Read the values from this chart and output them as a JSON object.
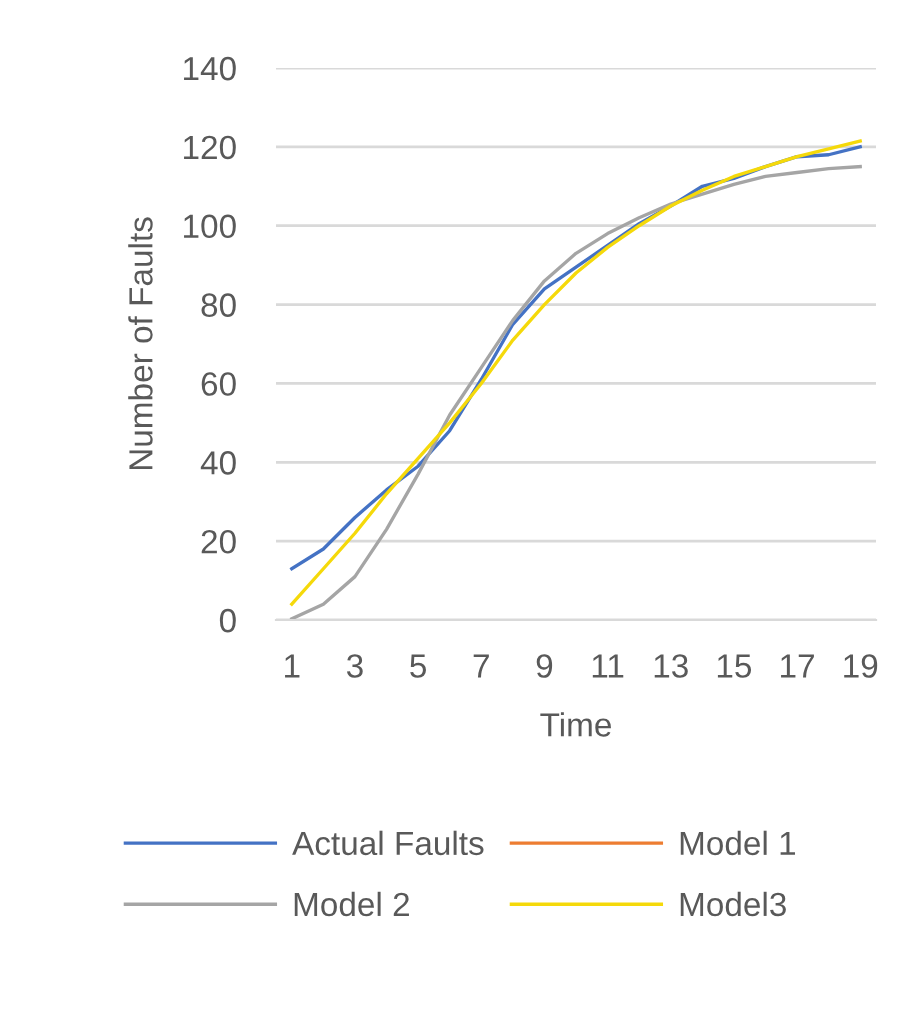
{
  "chart_data": {
    "type": "line",
    "xlabel": "Time",
    "ylabel": "Number of Faults",
    "categories": [
      "1",
      null,
      "3",
      null,
      "5",
      null,
      "7",
      null,
      "9",
      null,
      "11",
      null,
      "13",
      null,
      "15",
      null,
      "17",
      null,
      "19"
    ],
    "series": [
      {
        "name": "Actual Faults",
        "color": "#4472c4",
        "values": [
          13,
          18,
          26,
          33,
          39,
          48,
          61,
          75,
          84,
          89.5,
          95,
          100.5,
          105,
          110,
          112,
          115,
          117.5,
          118,
          120
        ]
      },
      {
        "name": "Model 1",
        "color": "#ed7d31",
        "values": [
          null,
          null,
          null,
          null,
          null,
          null,
          null,
          null,
          null,
          null,
          null,
          null,
          null,
          null,
          null,
          null,
          null,
          null,
          null
        ]
      },
      {
        "name": "Model 2",
        "color": "#a5a5a5",
        "values": [
          0.3,
          4,
          11,
          23,
          37,
          52,
          64,
          76,
          86,
          93,
          98,
          102,
          105.5,
          108,
          110.5,
          112.5,
          113.5,
          114.5,
          115
        ]
      },
      {
        "name": "Model3",
        "color": "#f5d90a",
        "values": [
          4,
          13,
          22,
          32,
          41,
          50,
          60,
          71,
          80,
          88,
          94.5,
          100,
          105,
          109,
          112.5,
          115,
          117.5,
          119.5,
          121.5
        ]
      }
    ],
    "ylim": [
      0,
      140
    ],
    "yticks": [
      0,
      20,
      40,
      60,
      80,
      100,
      120,
      140
    ],
    "grid": "y",
    "legend": "bottom",
    "marker": "none",
    "line_style": "solid"
  }
}
